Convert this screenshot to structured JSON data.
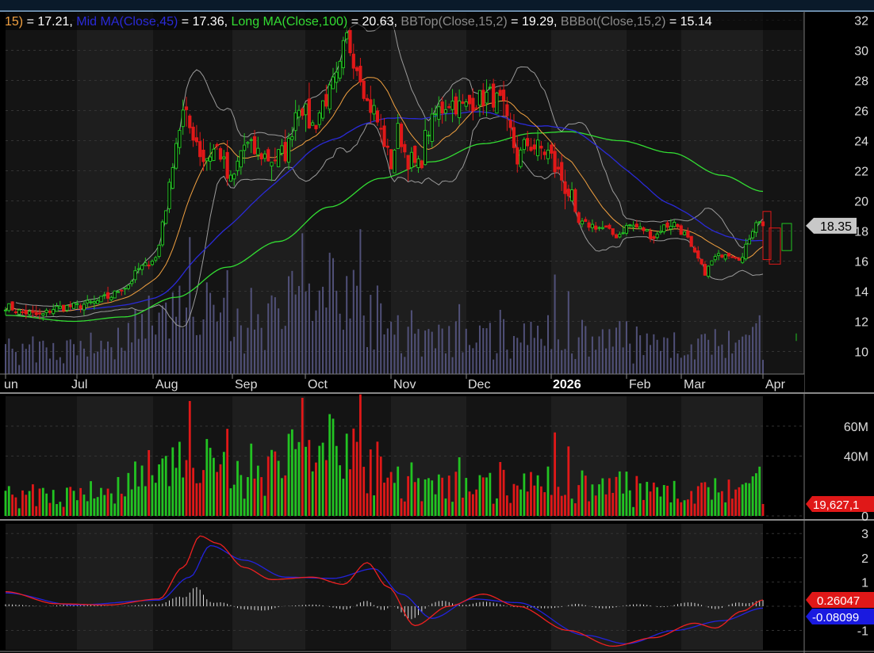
{
  "header": {
    "parts": [
      {
        "text": "15)",
        "color": "#f0a040"
      },
      {
        "text": " = 17.21, ",
        "color": "#ffffff"
      },
      {
        "text": "Mid MA(Close,45)",
        "color": "#2a2ad8"
      },
      {
        "text": " = 17.36, ",
        "color": "#ffffff"
      },
      {
        "text": "Long MA(Close,100)",
        "color": "#33dd33"
      },
      {
        "text": " = 20.63, ",
        "color": "#ffffff"
      },
      {
        "text": "BBTop(Close,15,2)",
        "color": "#8a8a8a"
      },
      {
        "text": " = 19.29, ",
        "color": "#ffffff"
      },
      {
        "text": "BBBot(Close,15,2)",
        "color": "#8a8a8a"
      },
      {
        "text": " = 15.14",
        "color": "#ffffff"
      }
    ]
  },
  "colors": {
    "up": "#22c322",
    "down": "#e01818",
    "short_ma": "#f0a040",
    "mid_ma": "#2a2ad8",
    "long_ma": "#33dd33",
    "bands": "#9a9a9a",
    "volume_overlay": "#5a5a8a",
    "macd": "#2222dd",
    "signal": "#ee2020",
    "hist": "#dddddd",
    "price_tag": "#c8c8c8",
    "value_tag": "#e01818",
    "macd_tag": "#1a1ae0"
  },
  "chart_data": [
    {
      "type": "candlestick",
      "panel": "price",
      "x_labels": [
        "un",
        "Jul",
        "Aug",
        "Sep",
        "Oct",
        "Nov",
        "Dec",
        "2026",
        "Feb",
        "Mar",
        "Apr"
      ],
      "y_ticks": [
        "10",
        "12",
        "14",
        "16",
        "18",
        "20",
        "22",
        "24",
        "26",
        "28",
        "30",
        "32"
      ],
      "ylim": [
        8.5,
        32.5
      ],
      "last_price_label": "18.35",
      "close_anchors": [
        {
          "i": 0,
          "v": 13.0
        },
        {
          "i": 5,
          "v": 12.6
        },
        {
          "i": 10,
          "v": 12.4
        },
        {
          "i": 15,
          "v": 12.9
        },
        {
          "i": 20,
          "v": 13.0
        },
        {
          "i": 25,
          "v": 13.2
        },
        {
          "i": 30,
          "v": 13.6
        },
        {
          "i": 35,
          "v": 14.3
        },
        {
          "i": 40,
          "v": 15.6
        },
        {
          "i": 44,
          "v": 16.2
        },
        {
          "i": 47,
          "v": 19.5
        },
        {
          "i": 50,
          "v": 24.0
        },
        {
          "i": 52,
          "v": 25.8
        },
        {
          "i": 55,
          "v": 24.5
        },
        {
          "i": 58,
          "v": 22.8
        },
        {
          "i": 62,
          "v": 23.5
        },
        {
          "i": 66,
          "v": 21.2
        },
        {
          "i": 70,
          "v": 23.7
        },
        {
          "i": 74,
          "v": 23.2
        },
        {
          "i": 78,
          "v": 22.8
        },
        {
          "i": 82,
          "v": 23.2
        },
        {
          "i": 86,
          "v": 26.5
        },
        {
          "i": 90,
          "v": 25.0
        },
        {
          "i": 94,
          "v": 26.8
        },
        {
          "i": 97,
          "v": 28.0
        },
        {
          "i": 100,
          "v": 30.8
        },
        {
          "i": 102,
          "v": 29.5
        },
        {
          "i": 104,
          "v": 28.5
        },
        {
          "i": 106,
          "v": 26.5
        },
        {
          "i": 108,
          "v": 26.0
        },
        {
          "i": 110,
          "v": 24.5
        },
        {
          "i": 113,
          "v": 22.5
        },
        {
          "i": 115,
          "v": 24.6
        },
        {
          "i": 118,
          "v": 22.8
        },
        {
          "i": 121,
          "v": 22.2
        },
        {
          "i": 124,
          "v": 24.8
        },
        {
          "i": 127,
          "v": 26.0
        },
        {
          "i": 130,
          "v": 26.6
        },
        {
          "i": 134,
          "v": 26.2
        },
        {
          "i": 138,
          "v": 26.7
        },
        {
          "i": 142,
          "v": 27.0
        },
        {
          "i": 145,
          "v": 26.5
        },
        {
          "i": 148,
          "v": 24.5
        },
        {
          "i": 150,
          "v": 22.8
        },
        {
          "i": 153,
          "v": 23.8
        },
        {
          "i": 156,
          "v": 23.5
        },
        {
          "i": 159,
          "v": 23.2
        },
        {
          "i": 162,
          "v": 21.8
        },
        {
          "i": 165,
          "v": 20.6
        },
        {
          "i": 168,
          "v": 18.5
        },
        {
          "i": 171,
          "v": 18.4
        },
        {
          "i": 175,
          "v": 18.2
        },
        {
          "i": 179,
          "v": 17.7
        },
        {
          "i": 183,
          "v": 18.4
        },
        {
          "i": 187,
          "v": 18.1
        },
        {
          "i": 190,
          "v": 17.6
        },
        {
          "i": 193,
          "v": 18.3
        },
        {
          "i": 196,
          "v": 18.5
        },
        {
          "i": 199,
          "v": 17.8
        },
        {
          "i": 202,
          "v": 16.4
        },
        {
          "i": 205,
          "v": 15.3
        },
        {
          "i": 208,
          "v": 16.2
        },
        {
          "i": 211,
          "v": 16.6
        },
        {
          "i": 214,
          "v": 16.4
        },
        {
          "i": 216,
          "v": 16.2
        },
        {
          "i": 218,
          "v": 17.6
        },
        {
          "i": 220,
          "v": 18.7
        },
        {
          "i": 222,
          "v": 18.35
        }
      ],
      "long_ma_anchors": [
        {
          "i": 0,
          "v": 12.4
        },
        {
          "i": 20,
          "v": 12.0
        },
        {
          "i": 35,
          "v": 12.3
        },
        {
          "i": 50,
          "v": 13.6
        },
        {
          "i": 65,
          "v": 15.6
        },
        {
          "i": 80,
          "v": 17.3
        },
        {
          "i": 95,
          "v": 19.6
        },
        {
          "i": 110,
          "v": 21.5
        },
        {
          "i": 125,
          "v": 22.6
        },
        {
          "i": 140,
          "v": 23.8
        },
        {
          "i": 155,
          "v": 24.5
        },
        {
          "i": 165,
          "v": 24.6
        },
        {
          "i": 180,
          "v": 24.0
        },
        {
          "i": 195,
          "v": 23.2
        },
        {
          "i": 210,
          "v": 21.7
        },
        {
          "i": 222,
          "v": 20.63
        }
      ]
    },
    {
      "type": "bar",
      "panel": "volume",
      "y_ticks": [
        "0",
        "40M",
        "60M"
      ],
      "ylim": [
        0,
        80
      ],
      "last_value_label": "19,627,1",
      "volume_anchors": [
        {
          "i": 0,
          "v": 14
        },
        {
          "i": 30,
          "v": 18
        },
        {
          "i": 45,
          "v": 36
        },
        {
          "i": 55,
          "v": 58
        },
        {
          "i": 65,
          "v": 30
        },
        {
          "i": 85,
          "v": 42
        },
        {
          "i": 100,
          "v": 48
        },
        {
          "i": 115,
          "v": 26
        },
        {
          "i": 135,
          "v": 20
        },
        {
          "i": 160,
          "v": 24
        },
        {
          "i": 190,
          "v": 16
        },
        {
          "i": 210,
          "v": 18
        },
        {
          "i": 222,
          "v": 20
        }
      ]
    },
    {
      "type": "line",
      "panel": "macd",
      "y_ticks": [
        "-1",
        "1",
        "2",
        "3"
      ],
      "ylim": [
        -1.8,
        3.4
      ],
      "macd_label": "0.26047",
      "signal_label": "-0.08099",
      "macd_anchors": [
        {
          "i": 0,
          "v": 0.6
        },
        {
          "i": 15,
          "v": 0.1
        },
        {
          "i": 30,
          "v": 0.05
        },
        {
          "i": 45,
          "v": 0.3
        },
        {
          "i": 52,
          "v": 1.6
        },
        {
          "i": 57,
          "v": 2.9
        },
        {
          "i": 62,
          "v": 2.6
        },
        {
          "i": 70,
          "v": 1.6
        },
        {
          "i": 78,
          "v": 1.1
        },
        {
          "i": 90,
          "v": 1.2
        },
        {
          "i": 99,
          "v": 0.9
        },
        {
          "i": 106,
          "v": 1.8
        },
        {
          "i": 112,
          "v": 0.8
        },
        {
          "i": 120,
          "v": -0.8
        },
        {
          "i": 130,
          "v": 0.0
        },
        {
          "i": 140,
          "v": 0.5
        },
        {
          "i": 150,
          "v": 0.0
        },
        {
          "i": 165,
          "v": -1.0
        },
        {
          "i": 178,
          "v": -1.65
        },
        {
          "i": 190,
          "v": -1.3
        },
        {
          "i": 202,
          "v": -0.7
        },
        {
          "i": 208,
          "v": -0.9
        },
        {
          "i": 216,
          "v": -0.2
        },
        {
          "i": 222,
          "v": 0.26
        }
      ],
      "signal_anchors": [
        {
          "i": 0,
          "v": 0.55
        },
        {
          "i": 20,
          "v": 0.05
        },
        {
          "i": 45,
          "v": 0.25
        },
        {
          "i": 54,
          "v": 1.2
        },
        {
          "i": 60,
          "v": 2.5
        },
        {
          "i": 70,
          "v": 1.9
        },
        {
          "i": 82,
          "v": 1.2
        },
        {
          "i": 96,
          "v": 1.15
        },
        {
          "i": 108,
          "v": 1.55
        },
        {
          "i": 116,
          "v": 0.5
        },
        {
          "i": 125,
          "v": -0.5
        },
        {
          "i": 137,
          "v": 0.3
        },
        {
          "i": 150,
          "v": 0.15
        },
        {
          "i": 170,
          "v": -1.2
        },
        {
          "i": 182,
          "v": -1.55
        },
        {
          "i": 196,
          "v": -1.0
        },
        {
          "i": 210,
          "v": -0.6
        },
        {
          "i": 222,
          "v": -0.08
        }
      ]
    }
  ]
}
